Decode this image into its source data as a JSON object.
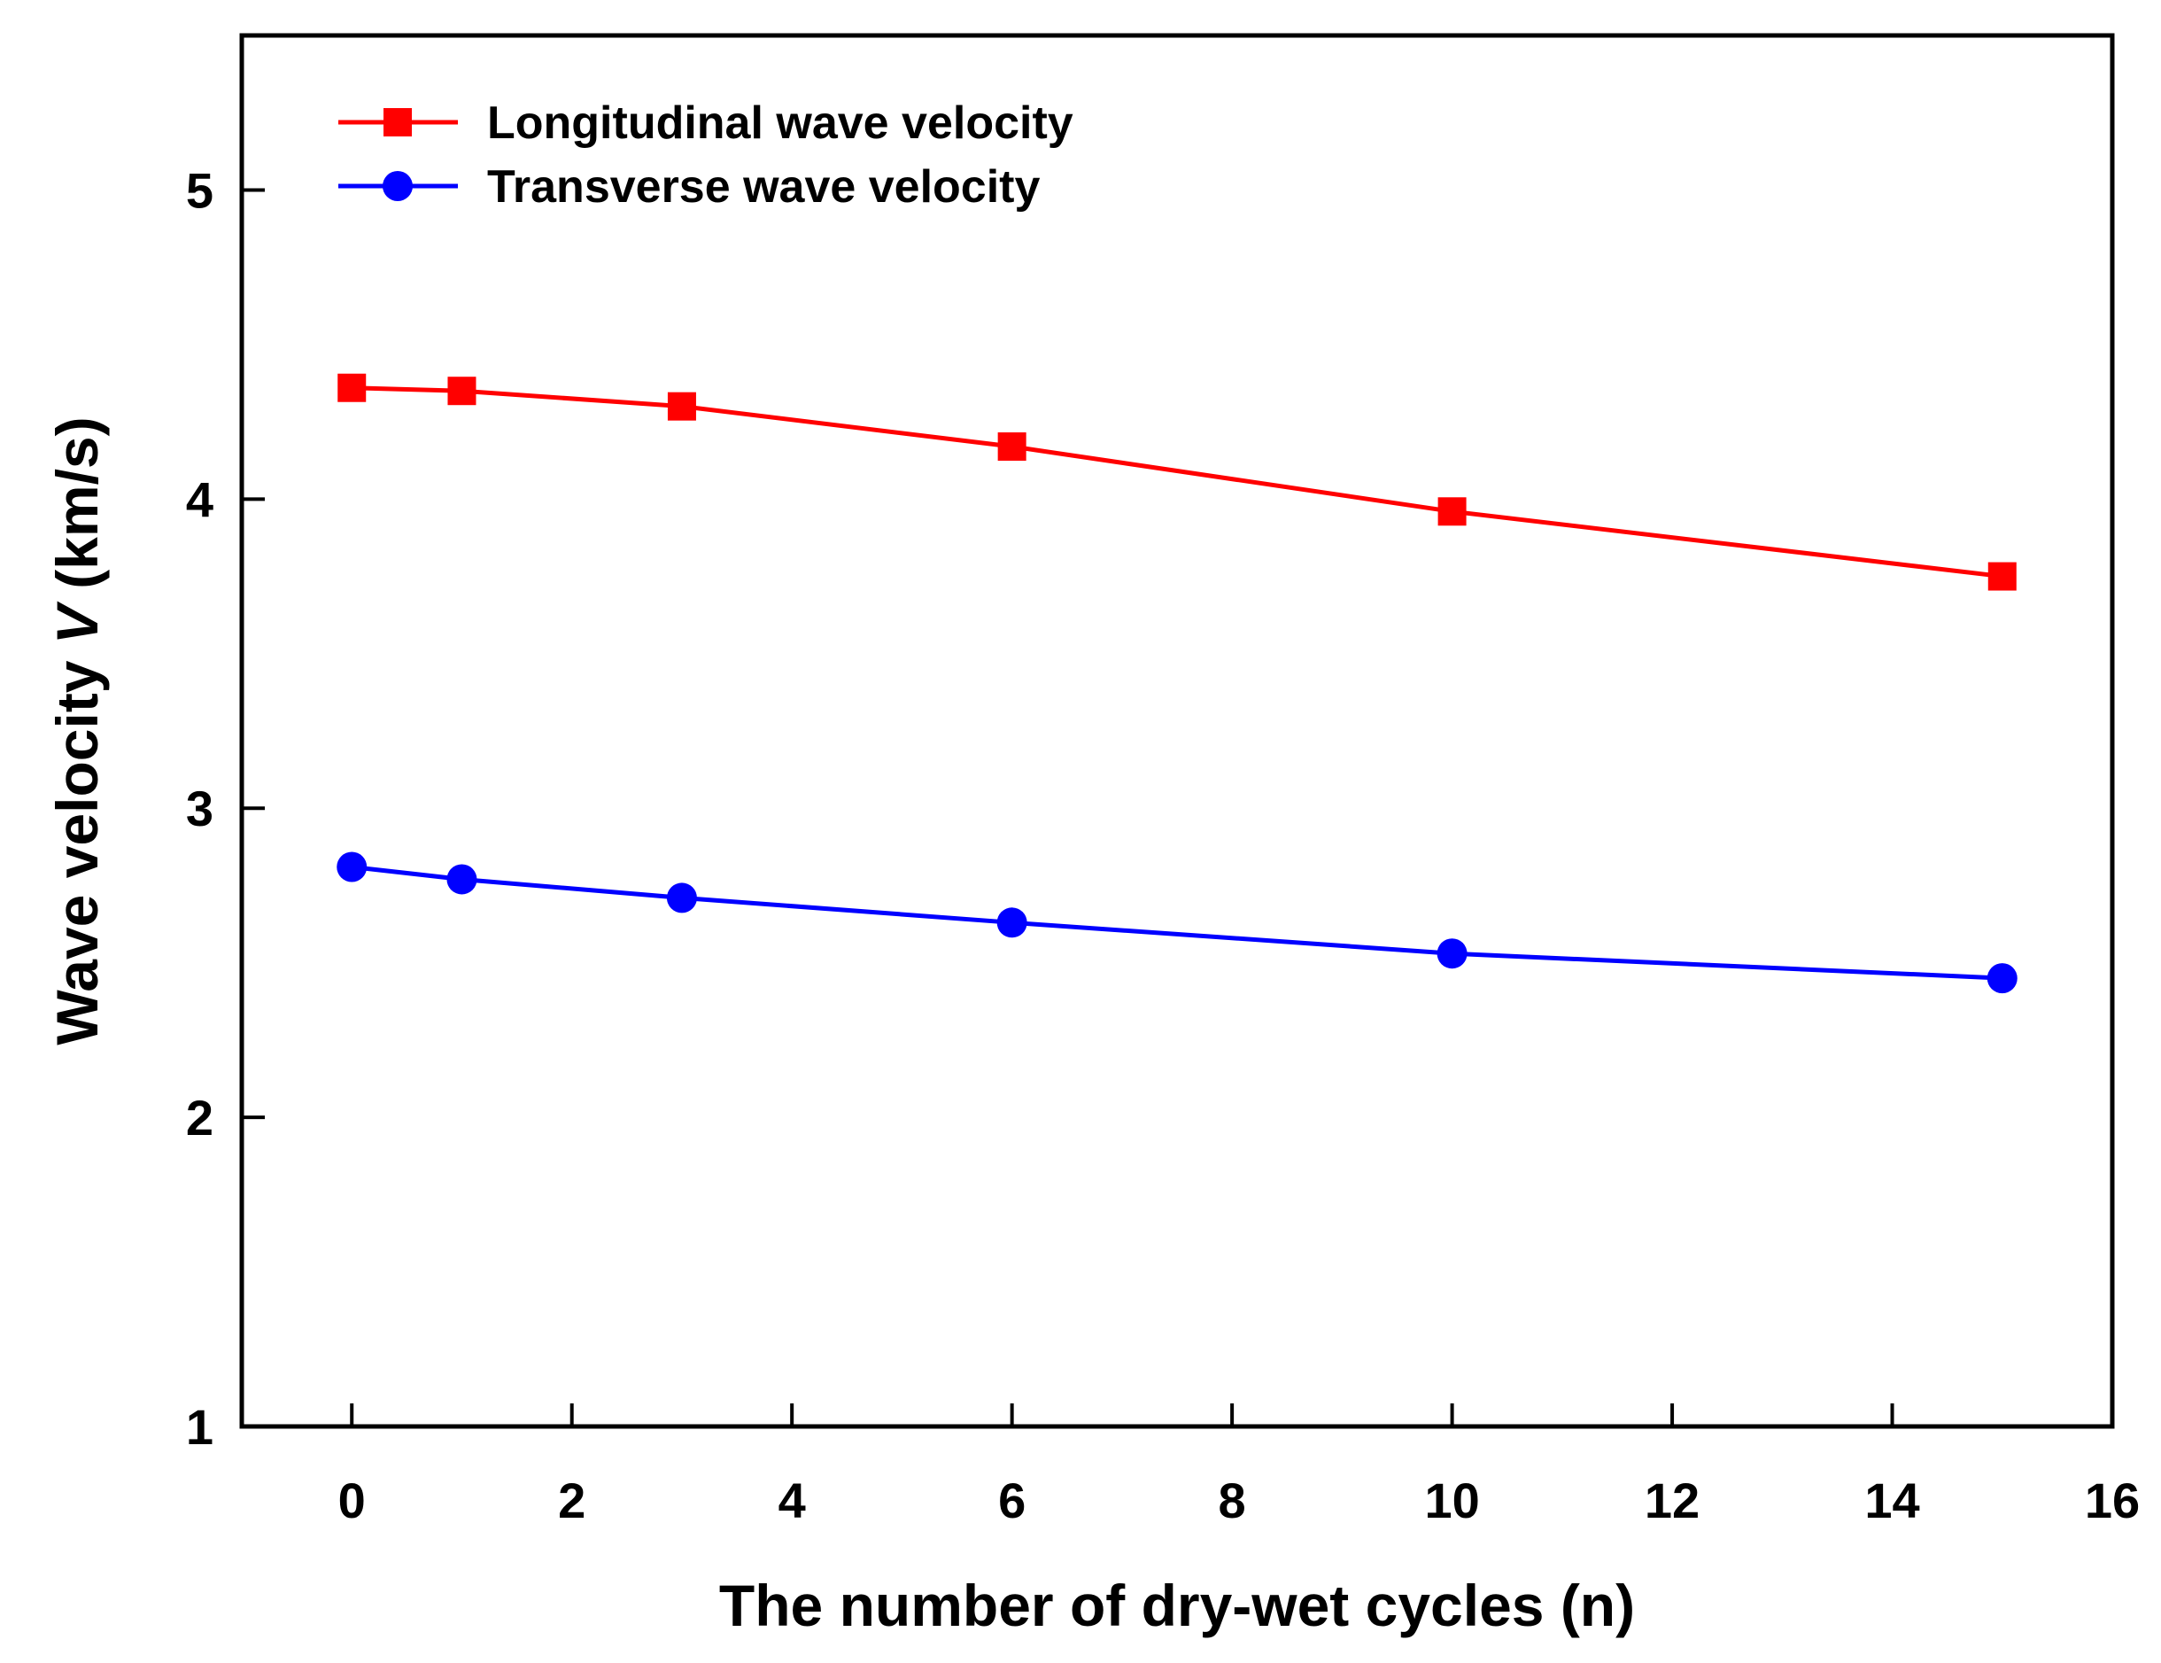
{
  "chart_data": {
    "type": "line",
    "title": "",
    "xlabel": "The number of dry-wet cycles (n)",
    "ylabel_prefix": "Wave velocity ",
    "ylabel_var": "V",
    "ylabel_suffix": " (km/s)",
    "xlim": [
      -1,
      16
    ],
    "ylim": [
      1,
      5.5
    ],
    "xticks": [
      0,
      2,
      4,
      6,
      8,
      10,
      12,
      14,
      16
    ],
    "yticks": [
      1,
      2,
      3,
      4,
      5
    ],
    "grid": false,
    "legend_position": "top-left",
    "x": [
      0,
      1,
      3,
      6,
      10,
      15
    ],
    "series": [
      {
        "name": "Longitudinal wave velocity",
        "color": "#ff0000",
        "marker": "square",
        "values": [
          4.36,
          4.35,
          4.3,
          4.17,
          3.96,
          3.75
        ]
      },
      {
        "name": "Transverse wave velocity",
        "color": "#0000ff",
        "marker": "circle",
        "values": [
          2.81,
          2.77,
          2.71,
          2.63,
          2.53,
          2.45
        ]
      }
    ]
  }
}
